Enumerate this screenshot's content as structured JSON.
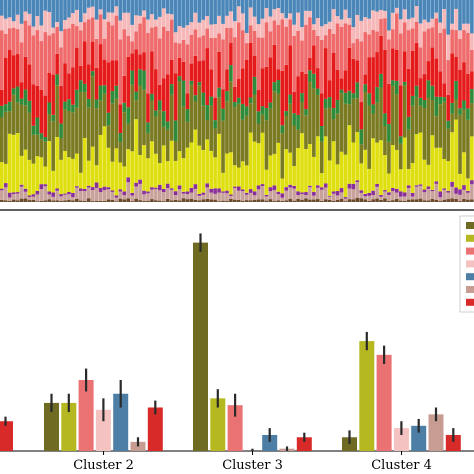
{
  "chart_data": [
    {
      "type": "bar",
      "stacked": true,
      "title": "",
      "xlabel": "",
      "ylabel": "",
      "ylim": [
        0,
        1
      ],
      "n_columns": 120,
      "series": [
        {
          "color": "#6b4a2b",
          "mean": 0.01
        },
        {
          "color": "#c9a39b",
          "mean": 0.04
        },
        {
          "color": "#8a2f9a",
          "mean": 0.015
        },
        {
          "color": "#dfdf10",
          "mean": 0.18
        },
        {
          "color": "#7a7a22",
          "mean": 0.22
        },
        {
          "color": "#2e8b3a",
          "mean": 0.05
        },
        {
          "color": "#e51b1b",
          "mean": 0.16
        },
        {
          "color": "#ef6b6b",
          "mean": 0.18
        },
        {
          "color": "#f6b8b8",
          "mean": 0.06
        },
        {
          "color": "#4a86b7",
          "mean": 0.08
        }
      ]
    },
    {
      "type": "bar",
      "title": "",
      "xlabel": "",
      "ylabel": "",
      "ylim": [
        0,
        10
      ],
      "legend": "top-right",
      "categories": [
        "Cluster 2",
        "Cluster 3",
        "Cluster 4"
      ],
      "series": [
        {
          "color": "#6f6b22",
          "values": [
            2.1,
            9.1,
            0.6
          ],
          "errors": [
            0.4,
            0.4,
            0.3
          ]
        },
        {
          "color": "#b5b820",
          "values": [
            2.1,
            2.3,
            4.8
          ],
          "errors": [
            0.4,
            0.4,
            0.4
          ]
        },
        {
          "color": "#ea7272",
          "values": [
            3.1,
            2.0,
            4.2
          ],
          "errors": [
            0.5,
            0.5,
            0.4
          ]
        },
        {
          "color": "#f5c2c2",
          "values": [
            1.8,
            0.0,
            1.0
          ],
          "errors": [
            0.5,
            0.1,
            0.3
          ]
        },
        {
          "color": "#4d7ea5",
          "values": [
            2.5,
            0.7,
            1.1
          ],
          "errors": [
            0.6,
            0.3,
            0.3
          ]
        },
        {
          "color": "#c79c92",
          "values": [
            0.4,
            0.1,
            1.6
          ],
          "errors": [
            0.2,
            0.1,
            0.3
          ]
        },
        {
          "color": "#d92a2a",
          "values": [
            1.9,
            0.6,
            0.7
          ],
          "errors": [
            0.3,
            0.2,
            0.3
          ]
        }
      ],
      "partial_left_bar": {
        "color": "#d92a2a",
        "value": 1.3,
        "error": 0.2
      }
    }
  ]
}
